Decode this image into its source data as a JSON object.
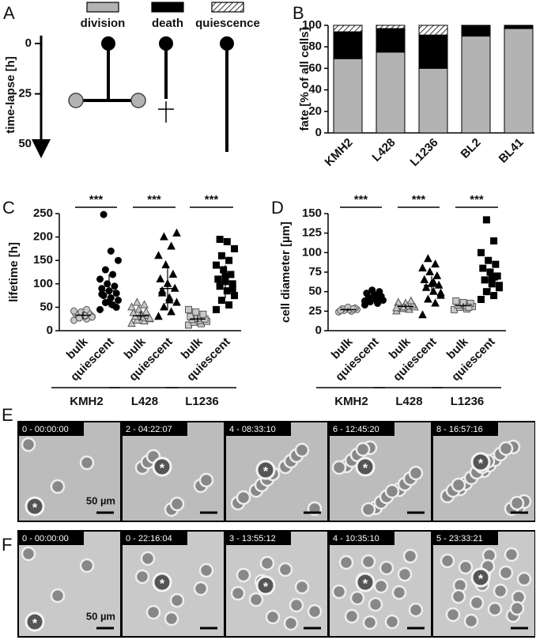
{
  "diagram": {
    "panel": "A",
    "ylabel": "time-lapse [h]",
    "ylim": [
      0,
      55
    ],
    "yticks": [
      0,
      25,
      50
    ]
  },
  "chart_data": [
    {
      "type": "stacked-bar",
      "panel": "B",
      "ylabel": "fate [% of all cells]",
      "categories": [
        "KMH2",
        "L428",
        "L1236",
        "BL2",
        "BL41"
      ],
      "ylim": [
        0,
        100
      ],
      "yticks": [
        0,
        20,
        40,
        60,
        80,
        100
      ],
      "series": [
        {
          "name": "division",
          "color": "#b3b3b3",
          "values": [
            69,
            75,
            60,
            90,
            97
          ]
        },
        {
          "name": "death",
          "color": "#000000",
          "values": [
            25,
            22,
            31,
            10,
            3
          ]
        },
        {
          "name": "quiescence",
          "color": "#ffffff",
          "pattern": "hatch",
          "values": [
            6,
            3,
            9,
            0,
            0
          ]
        }
      ]
    },
    {
      "type": "dot",
      "panel": "C",
      "ylabel": "lifetime [h]",
      "ylim": [
        0,
        250
      ],
      "yticks": [
        0,
        50,
        100,
        150,
        200,
        250
      ],
      "groups": [
        {
          "label": "KMH2",
          "significance": "***",
          "series": [
            {
              "name": "bulk",
              "marker": "circle",
              "color": "#c8c8c8",
              "values": [
                22,
                25,
                28,
                30,
                31,
                33,
                34,
                35,
                36,
                38,
                40,
                42,
                45,
                27,
                29,
                32
              ],
              "mean": 33,
              "sd": 8
            },
            {
              "name": "quiescent",
              "marker": "circle",
              "color": "#000000",
              "values": [
                45,
                55,
                60,
                65,
                70,
                75,
                80,
                85,
                90,
                95,
                100,
                110,
                120,
                130,
                150,
                170,
                248,
                50,
                62,
                78
              ],
              "mean": 85,
              "sd": 35
            }
          ]
        },
        {
          "label": "L428",
          "significance": "***",
          "series": [
            {
              "name": "bulk",
              "marker": "triangle",
              "color": "#c8c8c8",
              "values": [
                15,
                20,
                22,
                25,
                28,
                30,
                32,
                35,
                38,
                40,
                45,
                50,
                55,
                60,
                26
              ],
              "mean": 32,
              "sd": 10
            },
            {
              "name": "quiescent",
              "marker": "triangle",
              "color": "#000000",
              "values": [
                30,
                40,
                50,
                60,
                70,
                80,
                90,
                100,
                110,
                120,
                140,
                160,
                180,
                200,
                208,
                65,
                85
              ],
              "mean": 90,
              "sd": 45
            }
          ]
        },
        {
          "label": "L1236",
          "significance": "***",
          "series": [
            {
              "name": "bulk",
              "marker": "square",
              "color": "#c8c8c8",
              "values": [
                12,
                15,
                18,
                20,
                22,
                24,
                25,
                27,
                30,
                35,
                40,
                45
              ],
              "mean": 25,
              "sd": 7
            },
            {
              "name": "quiescent",
              "marker": "square",
              "color": "#000000",
              "values": [
                45,
                55,
                65,
                75,
                85,
                95,
                100,
                105,
                110,
                120,
                130,
                140,
                150,
                160,
                175,
                190,
                195,
                90,
                115
              ],
              "mean": 105,
              "sd": 35
            }
          ]
        }
      ]
    },
    {
      "type": "dot",
      "panel": "D",
      "ylabel": "cell diameter [µm]",
      "ylim": [
        0,
        150
      ],
      "yticks": [
        0,
        25,
        50,
        75,
        100,
        125,
        150
      ],
      "groups": [
        {
          "label": "KMH2",
          "significance": "***",
          "series": [
            {
              "name": "bulk",
              "marker": "circle",
              "color": "#c8c8c8",
              "values": [
                24,
                25,
                26,
                27,
                27,
                28,
                29,
                30,
                26,
                28
              ],
              "mean": 27,
              "sd": 2
            },
            {
              "name": "quiescent",
              "marker": "circle",
              "color": "#000000",
              "values": [
                33,
                35,
                37,
                39,
                40,
                42,
                44,
                46,
                48,
                50,
                52,
                38,
                43
              ],
              "mean": 42,
              "sd": 5
            }
          ]
        },
        {
          "label": "L428",
          "significance": "***",
          "series": [
            {
              "name": "bulk",
              "marker": "triangle",
              "color": "#c8c8c8",
              "values": [
                25,
                27,
                28,
                30,
                31,
                32,
                33,
                35,
                36,
                38,
                30,
                29
              ],
              "mean": 31,
              "sd": 3
            },
            {
              "name": "quiescent",
              "marker": "triangle",
              "color": "#000000",
              "values": [
                20,
                35,
                40,
                45,
                50,
                55,
                58,
                60,
                65,
                70,
                75,
                80,
                85,
                92,
                48,
                62
              ],
              "mean": 58,
              "sd": 12
            }
          ]
        },
        {
          "label": "L1236",
          "significance": "***",
          "series": [
            {
              "name": "bulk",
              "marker": "square",
              "color": "#c8c8c8",
              "values": [
                27,
                28,
                30,
                31,
                32,
                33,
                35,
                36,
                38,
                30
              ],
              "mean": 32,
              "sd": 3
            },
            {
              "name": "quiescent",
              "marker": "square",
              "color": "#000000",
              "values": [
                40,
                45,
                50,
                55,
                60,
                65,
                70,
                75,
                80,
                85,
                90,
                100,
                115,
                142,
                58,
                68
              ],
              "mean": 65,
              "sd": 15
            }
          ]
        }
      ]
    }
  ],
  "images": [
    {
      "panel": "E",
      "frames": [
        "0 - 00:00:00",
        "2 - 04:22:07",
        "4 - 08:33:10",
        "6 - 12:45:20",
        "8 - 16:57:16"
      ],
      "scale_bar": "50 µm",
      "marker": "*"
    },
    {
      "panel": "F",
      "frames": [
        "0 - 00:00:00",
        "0 - 22:16:04",
        "3 - 13:55:12",
        "4 - 10:35:10",
        "5 - 23:33:21"
      ],
      "scale_bar": "50 µm",
      "marker": "*"
    }
  ]
}
